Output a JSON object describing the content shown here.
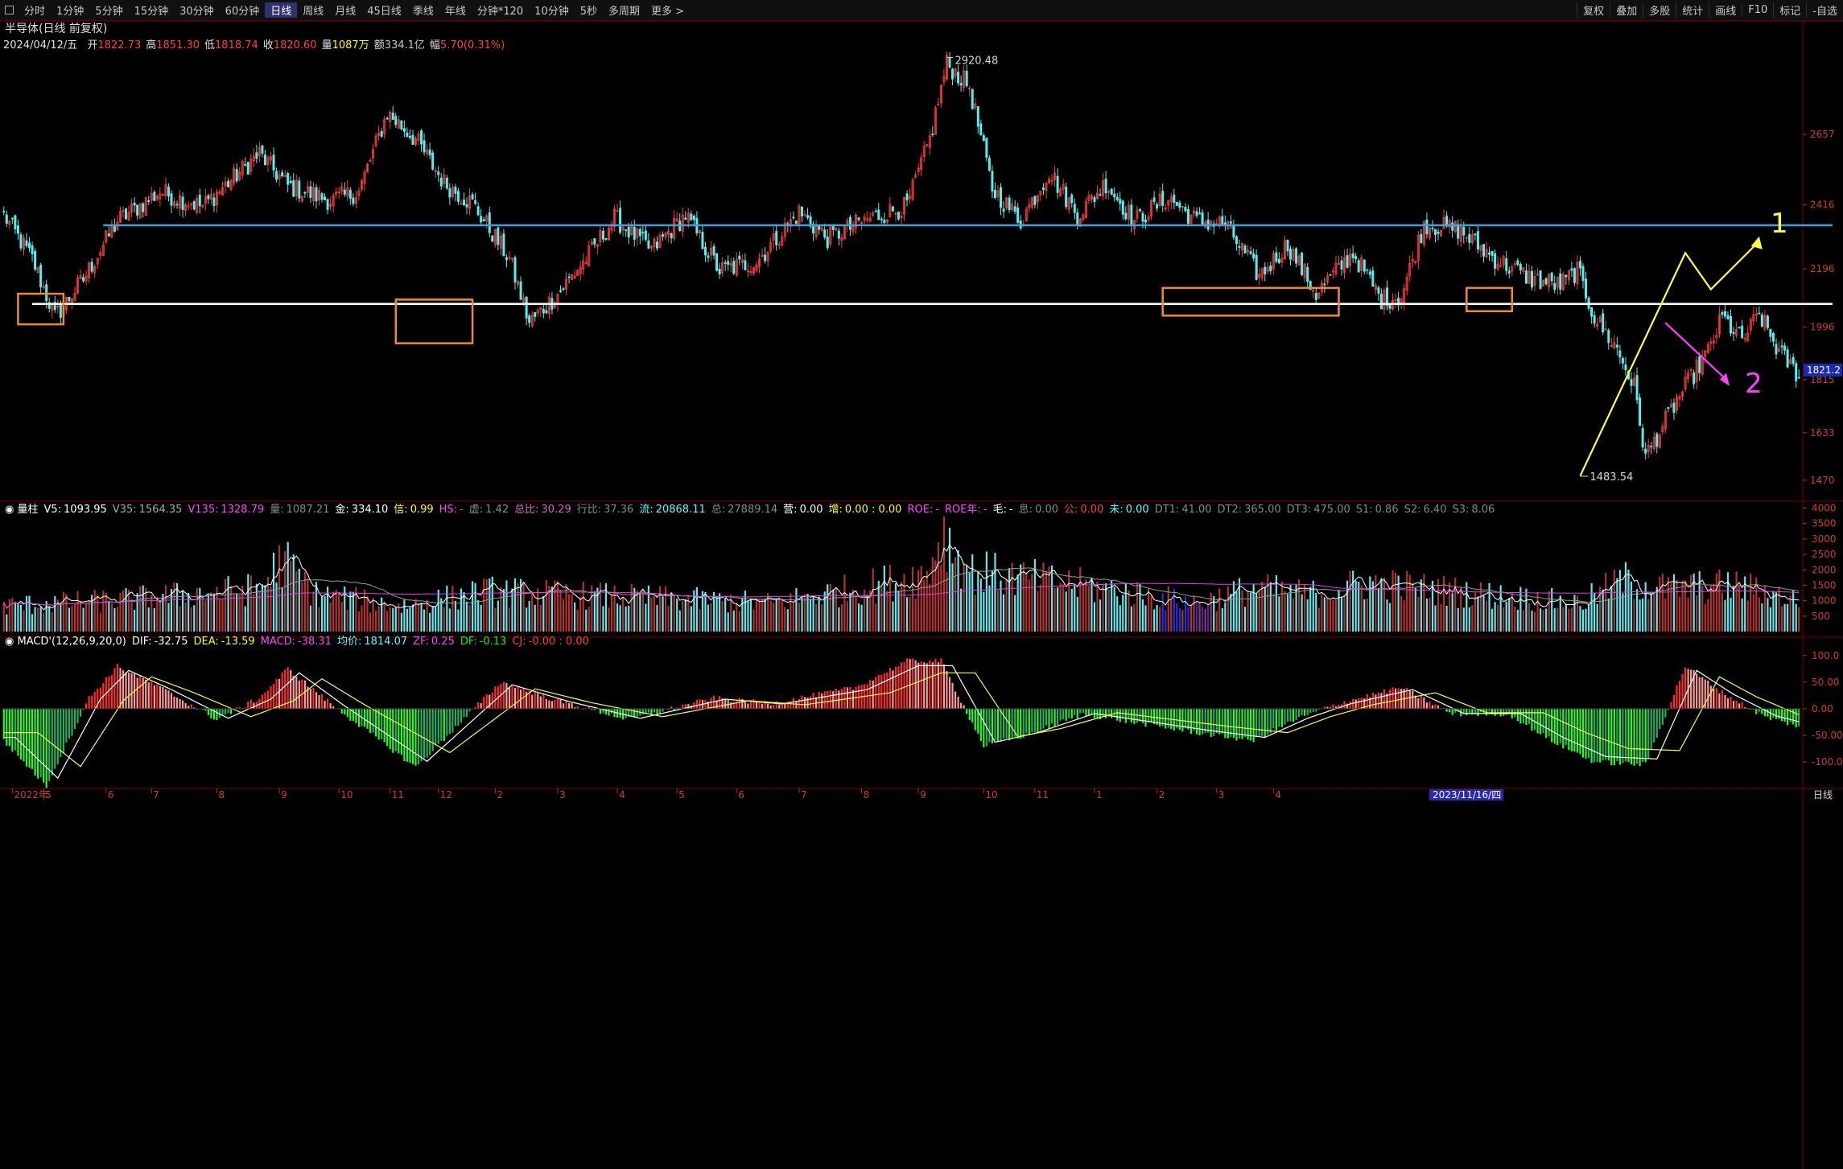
{
  "toolbar": {
    "periods": [
      "分时",
      "1分钟",
      "5分钟",
      "15分钟",
      "30分钟",
      "60分钟",
      "日线",
      "周线",
      "月线",
      "45日线",
      "季线",
      "年线",
      "分钟*120",
      "10分钟",
      "5秒",
      "多周期",
      "更多 >"
    ],
    "active_period": "日线",
    "right_buttons": [
      "复权",
      "叠加",
      "多股",
      "统计",
      "画线",
      "F10",
      "标记",
      "-自选"
    ]
  },
  "header": {
    "title": "半导体(日线 前复权)",
    "date": "2024/04/12/五",
    "fields": [
      {
        "label": "开",
        "value": "1822.73",
        "color": "#ff4040"
      },
      {
        "label": "高",
        "value": "1851.30",
        "color": "#ff4040"
      },
      {
        "label": "低",
        "value": "1818.74",
        "color": "#ff4040"
      },
      {
        "label": "收",
        "value": "1820.60",
        "color": "#ff4040"
      },
      {
        "label": "量",
        "value": "1087万",
        "color": "#ffff00"
      },
      {
        "label": "额",
        "value": "334.1亿",
        "color": "#c8c8c8"
      },
      {
        "label": "幅",
        "value": "5.70(0.31%)",
        "color": "#ff4040"
      }
    ]
  },
  "volume_header": {
    "name": "量柱",
    "items": [
      {
        "k": "V5:",
        "v": "1093.95",
        "c": "#ffffff"
      },
      {
        "k": "V35:",
        "v": "1564.35",
        "c": "#aaaaaa"
      },
      {
        "k": "V135:",
        "v": "1328.79",
        "c": "#ff44ff"
      },
      {
        "k": "量:",
        "v": "1087.21",
        "c": "#888888"
      },
      {
        "k": "金:",
        "v": "334.10",
        "c": "#ffffff"
      },
      {
        "k": "信:",
        "v": "0.99",
        "c": "#ffff00"
      },
      {
        "k": "HS:",
        "v": "-",
        "c": "#ff44ff"
      },
      {
        "k": "虚:",
        "v": "1.42",
        "c": "#888888"
      },
      {
        "k": "总比:",
        "v": "30.29",
        "c": "#cc66cc"
      },
      {
        "k": "行比:",
        "v": "37.36",
        "c": "#888888"
      },
      {
        "k": "流:",
        "v": "20868.11",
        "c": "#55ffff"
      },
      {
        "k": "总:",
        "v": "27889.14",
        "c": "#888888"
      },
      {
        "k": "营:",
        "v": "0.00",
        "c": "#ffffff"
      },
      {
        "k": "增:",
        "v": "0.00 : 0.00",
        "c": "#ffff00"
      },
      {
        "k": "ROE:",
        "v": "-",
        "c": "#ff44ff"
      },
      {
        "k": "ROE年:",
        "v": "-",
        "c": "#ff44ff"
      },
      {
        "k": "毛:",
        "v": "-",
        "c": "#ffffff"
      },
      {
        "k": "息:",
        "v": "0.00",
        "c": "#888888"
      },
      {
        "k": "公:",
        "v": "0.00",
        "c": "#ff4040"
      },
      {
        "k": "未:",
        "v": "0.00",
        "c": "#55ffff"
      },
      {
        "k": "DT1:",
        "v": "41.00",
        "c": "#888888"
      },
      {
        "k": "DT2:",
        "v": "365.00",
        "c": "#888888"
      },
      {
        "k": "DT3:",
        "v": "475.00",
        "c": "#888888"
      },
      {
        "k": "S1:",
        "v": "0.86",
        "c": "#888888"
      },
      {
        "k": "S2:",
        "v": "6.40",
        "c": "#888888"
      },
      {
        "k": "S3:",
        "v": "8.06",
        "c": "#888888"
      }
    ]
  },
  "macd_header": {
    "name": "MACD'(12,26,9,20,0)",
    "items": [
      {
        "k": "DIF:",
        "v": "-32.75",
        "c": "#ffffff"
      },
      {
        "k": "DEA:",
        "v": "-13.59",
        "c": "#ffff00"
      },
      {
        "k": "MACD:",
        "v": "-38.31",
        "c": "#ff44ff"
      },
      {
        "k": "均价:",
        "v": "1814.07",
        "c": "#55ffff"
      },
      {
        "k": "ZF:",
        "v": "0.25",
        "c": "#ff44ff"
      },
      {
        "k": "DF:",
        "v": "-0.13",
        "c": "#00ff00"
      },
      {
        "k": "CJ:",
        "v": "-0.00 : 0.00",
        "c": "#ff4040"
      }
    ]
  },
  "xaxis": {
    "labels": [
      "2022年",
      "5",
      "6",
      "7",
      "8",
      "9",
      "10",
      "11",
      "12",
      "2",
      "3",
      "4",
      "5",
      "6",
      "7",
      "8",
      "9",
      "10",
      "11",
      "1",
      "2",
      "3",
      "4"
    ],
    "highlight_date": "2023/11/16/四",
    "corner_label": "日线"
  },
  "price_axis": {
    "ticks": [
      2657,
      2416,
      2196,
      1996,
      1815,
      1633,
      1470
    ],
    "last_label": "1821.2"
  },
  "volume_axis": {
    "ticks": [
      4000,
      3500,
      3000,
      2500,
      2000,
      1500,
      1000,
      500.0
    ]
  },
  "macd_axis": {
    "ticks": [
      "100.0",
      "50.00",
      "0.00",
      "-50.00",
      "-100.0"
    ]
  },
  "annotations": {
    "high": "2920.48",
    "low": "1483.54",
    "marker_1": "1",
    "marker_2": "2"
  },
  "chart_data": [
    {
      "type": "candlestick",
      "title": "半导体(日线 前复权)",
      "ylim": [
        1420,
        2980
      ],
      "y_ticks": [
        2657,
        2416,
        2196,
        1996,
        1815,
        1633,
        1470
      ],
      "anchors": [
        [
          0,
          2380
        ],
        [
          10,
          2230
        ],
        [
          18,
          2030
        ],
        [
          28,
          2160
        ],
        [
          40,
          2360
        ],
        [
          55,
          2460
        ],
        [
          70,
          2410
        ],
        [
          90,
          2590
        ],
        [
          100,
          2480
        ],
        [
          115,
          2430
        ],
        [
          125,
          2460
        ],
        [
          135,
          2730
        ],
        [
          145,
          2640
        ],
        [
          155,
          2490
        ],
        [
          165,
          2420
        ],
        [
          178,
          2230
        ],
        [
          185,
          2010
        ],
        [
          195,
          2110
        ],
        [
          205,
          2230
        ],
        [
          215,
          2370
        ],
        [
          228,
          2260
        ],
        [
          240,
          2380
        ],
        [
          252,
          2190
        ],
        [
          265,
          2220
        ],
        [
          280,
          2390
        ],
        [
          290,
          2300
        ],
        [
          305,
          2370
        ],
        [
          318,
          2410
        ],
        [
          326,
          2640
        ],
        [
          332,
          2900
        ],
        [
          340,
          2820
        ],
        [
          348,
          2470
        ],
        [
          358,
          2360
        ],
        [
          368,
          2530
        ],
        [
          378,
          2380
        ],
        [
          388,
          2490
        ],
        [
          398,
          2360
        ],
        [
          410,
          2440
        ],
        [
          420,
          2360
        ],
        [
          430,
          2350
        ],
        [
          442,
          2170
        ],
        [
          452,
          2280
        ],
        [
          462,
          2110
        ],
        [
          475,
          2250
        ],
        [
          485,
          2090
        ],
        [
          492,
          2100
        ],
        [
          500,
          2350
        ],
        [
          512,
          2330
        ],
        [
          525,
          2230
        ],
        [
          538,
          2160
        ],
        [
          548,
          2140
        ],
        [
          554,
          2190
        ],
        [
          560,
          2030
        ],
        [
          568,
          1920
        ],
        [
          574,
          1790
        ],
        [
          578,
          1550
        ],
        [
          582,
          1620
        ],
        [
          590,
          1760
        ],
        [
          600,
          1910
        ],
        [
          605,
          2030
        ],
        [
          612,
          1950
        ],
        [
          618,
          2040
        ],
        [
          625,
          1910
        ],
        [
          632,
          1830
        ]
      ],
      "count": 633,
      "last": {
        "open": 1822.73,
        "high": 1851.3,
        "low": 1818.74,
        "close": 1820.6
      },
      "high_point": {
        "label": "2920.48",
        "value": 2920.48
      },
      "low_point": {
        "label": "1483.54",
        "value": 1483.54
      },
      "hlines": [
        {
          "value": 2345,
          "color": "#3ea0e0",
          "from": 35
        },
        {
          "value": 2075,
          "color": "#ffffff",
          "from": 10
        }
      ],
      "boxes": [
        {
          "x0": 5,
          "x1": 21,
          "y0": 2110,
          "y1": 2005
        },
        {
          "x0": 138,
          "x1": 165,
          "y0": 2090,
          "y1": 1940
        },
        {
          "x0": 408,
          "x1": 470,
          "y0": 2130,
          "y1": 2035
        },
        {
          "x0": 515,
          "x1": 531,
          "y0": 2130,
          "y1": 2050
        }
      ],
      "drawn_lines": [
        {
          "color": "#ffff40",
          "points": [
            [
              555,
              1485
            ],
            [
              592,
              2250
            ],
            [
              601,
              2125
            ],
            [
              618,
              2290
            ]
          ]
        },
        {
          "color": "#ff40ff",
          "points": [
            [
              585,
              2010
            ],
            [
              607,
              1810
            ]
          ]
        }
      ]
    },
    {
      "type": "bar",
      "title": "量柱",
      "ylim": [
        0,
        4300
      ],
      "y_ticks": [
        4000,
        3500,
        3000,
        2500,
        2000,
        1500,
        1000,
        500
      ],
      "anchors": [
        [
          0,
          900
        ],
        [
          40,
          1100
        ],
        [
          90,
          1500
        ],
        [
          98,
          2500
        ],
        [
          110,
          1300
        ],
        [
          140,
          900
        ],
        [
          170,
          1400
        ],
        [
          220,
          1200
        ],
        [
          270,
          1000
        ],
        [
          300,
          1500
        ],
        [
          325,
          2000
        ],
        [
          330,
          3500
        ],
        [
          340,
          2100
        ],
        [
          380,
          1600
        ],
        [
          420,
          1000
        ],
        [
          440,
          1500
        ],
        [
          460,
          1300
        ],
        [
          480,
          1700
        ],
        [
          520,
          1300
        ],
        [
          555,
          1000
        ],
        [
          570,
          1800
        ],
        [
          585,
          1500
        ],
        [
          610,
          1600
        ],
        [
          632,
          1090
        ]
      ],
      "ma_values": {
        "V5": 1093.95,
        "V35": 1564.35,
        "V135": 1328.79
      }
    },
    {
      "type": "bar",
      "title": "MACD'(12,26,9,20,0)",
      "ylim": [
        -150,
        130
      ],
      "y_ticks": [
        100,
        50,
        0,
        -50,
        -100
      ],
      "anchors": [
        [
          0,
          -60
        ],
        [
          15,
          -145
        ],
        [
          30,
          20
        ],
        [
          40,
          80
        ],
        [
          55,
          40
        ],
        [
          75,
          -20
        ],
        [
          90,
          20
        ],
        [
          100,
          75
        ],
        [
          115,
          10
        ],
        [
          145,
          -110
        ],
        [
          175,
          50
        ],
        [
          195,
          15
        ],
        [
          220,
          -20
        ],
        [
          250,
          20
        ],
        [
          270,
          10
        ],
        [
          300,
          40
        ],
        [
          318,
          90
        ],
        [
          330,
          90
        ],
        [
          345,
          -70
        ],
        [
          360,
          -50
        ],
        [
          380,
          -10
        ],
        [
          420,
          -45
        ],
        [
          440,
          -60
        ],
        [
          455,
          -20
        ],
        [
          470,
          10
        ],
        [
          492,
          40
        ],
        [
          510,
          -10
        ],
        [
          530,
          -10
        ],
        [
          545,
          -60
        ],
        [
          560,
          -100
        ],
        [
          578,
          -105
        ],
        [
          592,
          80
        ],
        [
          605,
          30
        ],
        [
          620,
          -15
        ],
        [
          632,
          -33
        ]
      ],
      "last": {
        "DIF": -32.75,
        "DEA": -13.59,
        "MACD": -38.31
      }
    }
  ]
}
